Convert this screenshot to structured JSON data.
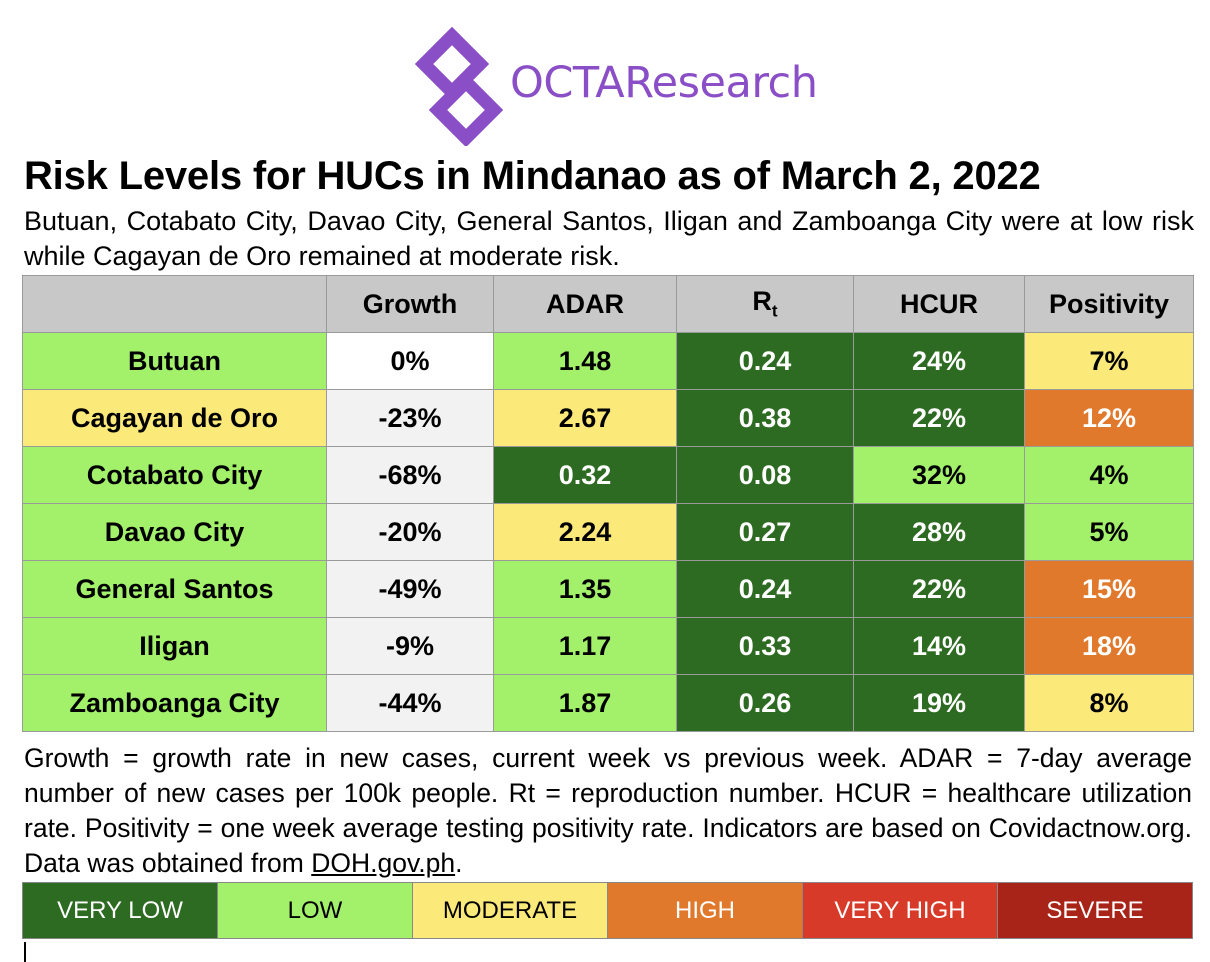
{
  "brand": {
    "name": "OCTAResearch",
    "logo_color": "#8a4fc7"
  },
  "title": "Risk Levels for HUCs in Mindanao as of March 2, 2022",
  "subtitle": "Butuan, Cotabato City, Davao City, General Santos, Iligan and Zamboanga City were at low risk while Cagayan de Oro remained at moderate risk.",
  "table": {
    "headers": {
      "growth": "Growth",
      "adar": "ADAR",
      "rt_main": "R",
      "rt_sub": "t",
      "hcur": "HCUR",
      "positivity": "Positivity"
    },
    "rows": [
      {
        "city": "Butuan",
        "growth": "0%",
        "adar": "1.48",
        "rt": "0.24",
        "hcur": "24%",
        "positivity": "7%",
        "levels": {
          "city": "low",
          "growth": "none",
          "adar": "low",
          "rt": "very-low",
          "hcur": "very-low",
          "positivity": "moderate"
        }
      },
      {
        "city": "Cagayan de Oro",
        "growth": "-23%",
        "adar": "2.67",
        "rt": "0.38",
        "hcur": "22%",
        "positivity": "12%",
        "levels": {
          "city": "moderate",
          "growth": "none",
          "adar": "moderate",
          "rt": "very-low",
          "hcur": "very-low",
          "positivity": "high"
        }
      },
      {
        "city": "Cotabato City",
        "growth": "-68%",
        "adar": "0.32",
        "rt": "0.08",
        "hcur": "32%",
        "positivity": "4%",
        "levels": {
          "city": "low",
          "growth": "none",
          "adar": "very-low",
          "rt": "very-low",
          "hcur": "low",
          "positivity": "low"
        }
      },
      {
        "city": "Davao City",
        "growth": "-20%",
        "adar": "2.24",
        "rt": "0.27",
        "hcur": "28%",
        "positivity": "5%",
        "levels": {
          "city": "low",
          "growth": "none",
          "adar": "moderate",
          "rt": "very-low",
          "hcur": "very-low",
          "positivity": "low"
        }
      },
      {
        "city": "General Santos",
        "growth": "-49%",
        "adar": "1.35",
        "rt": "0.24",
        "hcur": "22%",
        "positivity": "15%",
        "levels": {
          "city": "low",
          "growth": "none",
          "adar": "low",
          "rt": "very-low",
          "hcur": "very-low",
          "positivity": "high"
        }
      },
      {
        "city": "Iligan",
        "growth": "-9%",
        "adar": "1.17",
        "rt": "0.33",
        "hcur": "14%",
        "positivity": "18%",
        "levels": {
          "city": "low",
          "growth": "none",
          "adar": "low",
          "rt": "very-low",
          "hcur": "very-low",
          "positivity": "high"
        }
      },
      {
        "city": "Zamboanga City",
        "growth": "-44%",
        "adar": "1.87",
        "rt": "0.26",
        "hcur": "19%",
        "positivity": "8%",
        "levels": {
          "city": "low",
          "growth": "none",
          "adar": "low",
          "rt": "very-low",
          "hcur": "very-low",
          "positivity": "moderate"
        }
      }
    ]
  },
  "notes": {
    "text": "Growth = growth rate in new cases, current week vs previous week. ADAR = 7-day average number of new cases per 100k people. Rt = reproduction number. HCUR = healthcare utilization rate. Positivity = one week average testing positivity rate. Indicators are based on Covidactnow.org. Data was obtained from ",
    "link": "DOH.gov.ph",
    "end": "."
  },
  "legend": [
    {
      "label": "VERY LOW",
      "color": "#2e6b22",
      "text_color": "#ffffff"
    },
    {
      "label": "LOW",
      "color": "#a3f06a",
      "text_color": "#000000"
    },
    {
      "label": "MODERATE",
      "color": "#fbe97a",
      "text_color": "#000000"
    },
    {
      "label": "HIGH",
      "color": "#e0792c",
      "text_color": "#ffffff"
    },
    {
      "label": "VERY HIGH",
      "color": "#d83a2a",
      "text_color": "#ffffff"
    },
    {
      "label": "SEVERE",
      "color": "#a82418",
      "text_color": "#ffffff"
    }
  ]
}
